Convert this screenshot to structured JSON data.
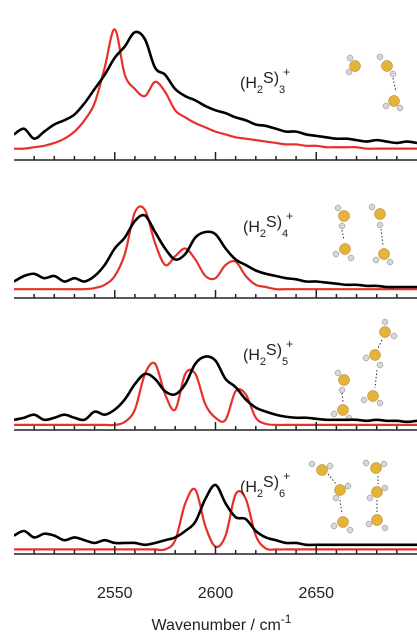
{
  "chart_data": [
    {
      "type": "line",
      "annotation": [
        "(H",
        "2",
        "S)",
        "3",
        "+"
      ],
      "x": [
        2500,
        2505,
        2510,
        2515,
        2520,
        2525,
        2530,
        2535,
        2540,
        2545,
        2550,
        2555,
        2560,
        2565,
        2570,
        2575,
        2580,
        2585,
        2590,
        2595,
        2600,
        2605,
        2610,
        2615,
        2620,
        2625,
        2630,
        2635,
        2640,
        2645,
        2650,
        2655,
        2660,
        2665,
        2670,
        2675,
        2680,
        2685,
        2690,
        2695,
        2700
      ],
      "series": [
        {
          "color": "#e8302a",
          "values": [
            0.08,
            0.08,
            0.09,
            0.1,
            0.12,
            0.15,
            0.2,
            0.28,
            0.4,
            0.65,
            0.92,
            0.6,
            0.5,
            0.45,
            0.55,
            0.48,
            0.35,
            0.3,
            0.26,
            0.23,
            0.2,
            0.18,
            0.16,
            0.15,
            0.14,
            0.13,
            0.12,
            0.11,
            0.11,
            0.1,
            0.1,
            0.09,
            0.09,
            0.09,
            0.09,
            0.08,
            0.08,
            0.08,
            0.08,
            0.08,
            0.08
          ]
        },
        {
          "color": "#000000",
          "values": [
            0.18,
            0.22,
            0.15,
            0.2,
            0.25,
            0.28,
            0.32,
            0.4,
            0.5,
            0.6,
            0.72,
            0.8,
            0.9,
            0.85,
            0.65,
            0.6,
            0.5,
            0.45,
            0.42,
            0.38,
            0.35,
            0.33,
            0.3,
            0.28,
            0.25,
            0.24,
            0.22,
            0.2,
            0.2,
            0.18,
            0.17,
            0.16,
            0.15,
            0.15,
            0.14,
            0.13,
            0.14,
            0.13,
            0.12,
            0.13,
            0.12
          ]
        }
      ],
      "xlim": [
        2500,
        2700
      ],
      "ylim": [
        0,
        1
      ],
      "xticks": [
        2550,
        2600,
        2650
      ],
      "minor_xticks": [
        2510,
        2520,
        2530,
        2540,
        2560,
        2570,
        2580,
        2590,
        2610,
        2620,
        2630,
        2640,
        2660,
        2670,
        2680,
        2690
      ]
    },
    {
      "type": "line",
      "annotation": [
        "(H",
        "2",
        "S)",
        "4",
        "+"
      ],
      "x": [
        2500,
        2505,
        2510,
        2515,
        2520,
        2525,
        2530,
        2535,
        2540,
        2545,
        2550,
        2555,
        2560,
        2565,
        2570,
        2575,
        2580,
        2585,
        2590,
        2595,
        2600,
        2605,
        2610,
        2615,
        2620,
        2625,
        2630,
        2635,
        2640,
        2645,
        2650,
        2655,
        2660,
        2665,
        2670,
        2675,
        2680,
        2685,
        2690,
        2695,
        2700
      ],
      "series": [
        {
          "color": "#e8302a",
          "values": [
            0.08,
            0.08,
            0.08,
            0.08,
            0.08,
            0.08,
            0.08,
            0.08,
            0.09,
            0.12,
            0.2,
            0.4,
            0.78,
            0.8,
            0.5,
            0.3,
            0.38,
            0.45,
            0.35,
            0.2,
            0.18,
            0.3,
            0.33,
            0.2,
            0.12,
            0.1,
            0.08,
            0.08,
            0.08,
            0.08,
            0.08,
            0.08,
            0.08,
            0.08,
            0.08,
            0.08,
            0.08,
            0.08,
            0.08,
            0.08,
            0.08
          ]
        },
        {
          "color": "#000000",
          "values": [
            0.15,
            0.2,
            0.22,
            0.18,
            0.2,
            0.15,
            0.18,
            0.15,
            0.2,
            0.3,
            0.45,
            0.55,
            0.7,
            0.75,
            0.6,
            0.45,
            0.35,
            0.4,
            0.55,
            0.6,
            0.58,
            0.45,
            0.35,
            0.3,
            0.25,
            0.22,
            0.2,
            0.18,
            0.17,
            0.15,
            0.15,
            0.14,
            0.13,
            0.12,
            0.12,
            0.11,
            0.11,
            0.1,
            0.1,
            0.1,
            0.1
          ]
        }
      ],
      "xlim": [
        2500,
        2700
      ],
      "ylim": [
        0,
        1
      ],
      "xticks": [
        2550,
        2600,
        2650
      ],
      "minor_xticks": [
        2510,
        2520,
        2530,
        2540,
        2560,
        2570,
        2580,
        2590,
        2610,
        2620,
        2630,
        2640,
        2660,
        2670,
        2680,
        2690
      ]
    },
    {
      "type": "line",
      "annotation": [
        "(H",
        "2",
        "S)",
        "5",
        "+"
      ],
      "x": [
        2500,
        2505,
        2510,
        2515,
        2520,
        2525,
        2530,
        2535,
        2540,
        2545,
        2550,
        2555,
        2560,
        2565,
        2570,
        2575,
        2580,
        2585,
        2590,
        2595,
        2600,
        2605,
        2610,
        2615,
        2620,
        2625,
        2630,
        2635,
        2640,
        2645,
        2650,
        2655,
        2660,
        2665,
        2670,
        2675,
        2680,
        2685,
        2690,
        2695,
        2700
      ],
      "series": [
        {
          "color": "#e8302a",
          "values": [
            0.05,
            0.05,
            0.05,
            0.05,
            0.05,
            0.05,
            0.05,
            0.05,
            0.05,
            0.05,
            0.05,
            0.08,
            0.2,
            0.55,
            0.65,
            0.35,
            0.2,
            0.55,
            0.55,
            0.25,
            0.12,
            0.1,
            0.38,
            0.35,
            0.12,
            0.06,
            0.05,
            0.05,
            0.05,
            0.05,
            0.05,
            0.05,
            0.05,
            0.05,
            0.05,
            0.05,
            0.05,
            0.05,
            0.05,
            0.05,
            0.05
          ]
        },
        {
          "color": "#000000",
          "values": [
            0.1,
            0.12,
            0.15,
            0.1,
            0.12,
            0.15,
            0.12,
            0.1,
            0.18,
            0.15,
            0.2,
            0.3,
            0.45,
            0.55,
            0.5,
            0.38,
            0.35,
            0.45,
            0.65,
            0.72,
            0.68,
            0.5,
            0.42,
            0.3,
            0.22,
            0.18,
            0.15,
            0.13,
            0.12,
            0.12,
            0.11,
            0.1,
            0.1,
            0.1,
            0.1,
            0.09,
            0.1,
            0.09,
            0.09,
            0.08,
            0.09
          ]
        }
      ],
      "xlim": [
        2500,
        2700
      ],
      "ylim": [
        0,
        1
      ],
      "xticks": [
        2550,
        2600,
        2650
      ],
      "minor_xticks": [
        2510,
        2520,
        2530,
        2540,
        2560,
        2570,
        2580,
        2590,
        2610,
        2620,
        2630,
        2640,
        2660,
        2670,
        2680,
        2690
      ]
    },
    {
      "type": "line",
      "annotation": [
        "(H",
        "2",
        "S)",
        "6",
        "+"
      ],
      "x": [
        2500,
        2505,
        2510,
        2515,
        2520,
        2525,
        2530,
        2535,
        2540,
        2545,
        2550,
        2555,
        2560,
        2565,
        2570,
        2575,
        2580,
        2585,
        2590,
        2595,
        2600,
        2605,
        2610,
        2615,
        2620,
        2625,
        2630,
        2635,
        2640,
        2645,
        2650,
        2655,
        2660,
        2665,
        2670,
        2675,
        2680,
        2685,
        2690,
        2695,
        2700
      ],
      "series": [
        {
          "color": "#e8302a",
          "values": [
            0.05,
            0.05,
            0.05,
            0.05,
            0.05,
            0.05,
            0.05,
            0.05,
            0.05,
            0.05,
            0.05,
            0.05,
            0.05,
            0.05,
            0.05,
            0.05,
            0.15,
            0.55,
            0.7,
            0.3,
            0.08,
            0.2,
            0.65,
            0.6,
            0.2,
            0.06,
            0.05,
            0.05,
            0.05,
            0.05,
            0.05,
            0.05,
            0.05,
            0.05,
            0.05,
            0.05,
            0.05,
            0.05,
            0.05,
            0.05,
            0.05
          ]
        },
        {
          "color": "#000000",
          "values": [
            0.2,
            0.25,
            0.18,
            0.22,
            0.2,
            0.15,
            0.18,
            0.15,
            0.12,
            0.15,
            0.12,
            0.12,
            0.12,
            0.1,
            0.12,
            0.15,
            0.18,
            0.25,
            0.35,
            0.6,
            0.75,
            0.55,
            0.4,
            0.38,
            0.25,
            0.18,
            0.15,
            0.12,
            0.12,
            0.1,
            0.1,
            0.1,
            0.1,
            0.1,
            0.1,
            0.1,
            0.1,
            0.1,
            0.1,
            0.1,
            0.1
          ]
        }
      ],
      "xlim": [
        2500,
        2700
      ],
      "ylim": [
        0,
        1
      ],
      "xticks": [
        2550,
        2600,
        2650
      ],
      "minor_xticks": [
        2510,
        2520,
        2530,
        2540,
        2560,
        2570,
        2580,
        2590,
        2610,
        2620,
        2630,
        2640,
        2660,
        2670,
        2680,
        2690
      ],
      "x_label": [
        "Wavenumber / cm",
        "-1"
      ]
    }
  ]
}
